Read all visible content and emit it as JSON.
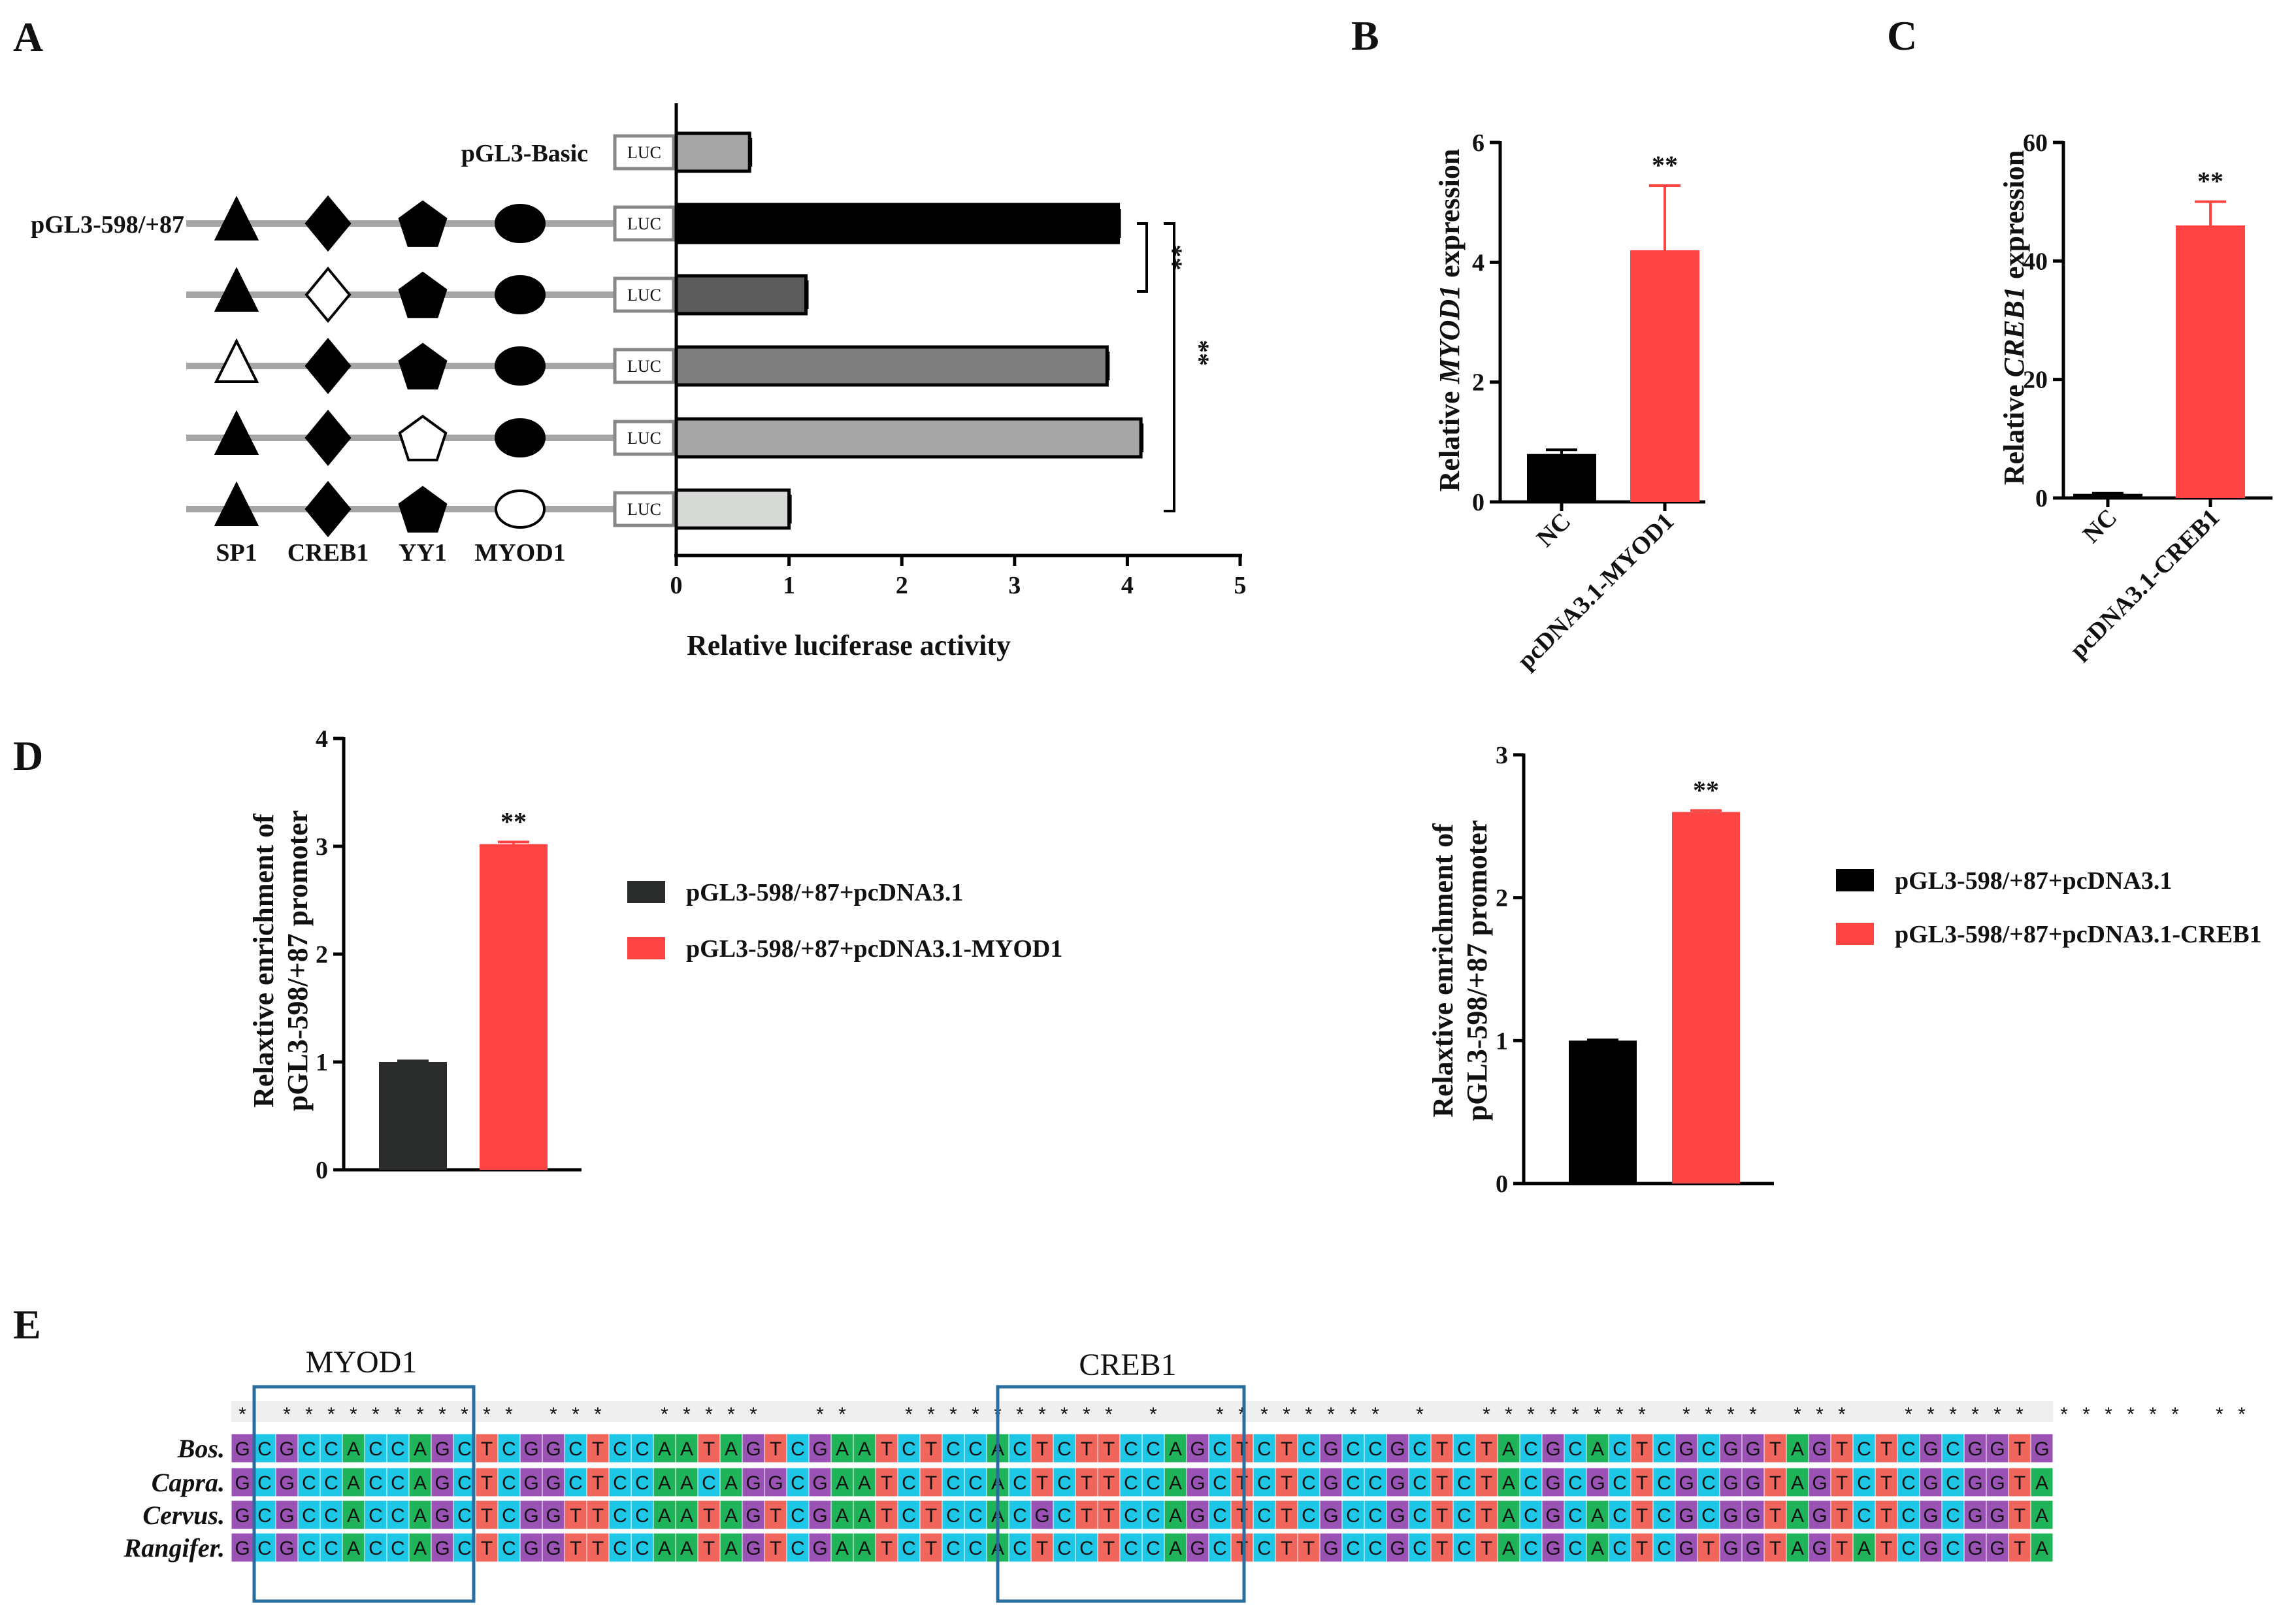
{
  "panels": {
    "A": "A",
    "B": "B",
    "C": "C",
    "D": "D",
    "E": "E"
  },
  "colors": {
    "red": "#ff4444",
    "black": "#000000",
    "dark": "#2a2c2c",
    "grey_light": "#a6a6a6",
    "grey_dark": "#5c5c5c",
    "grey_mid": "#7f7f7f",
    "grey_pale": "#d7d9d7"
  },
  "chart_data": [
    {
      "id": "A",
      "type": "bar",
      "orientation": "horizontal",
      "title": "",
      "xlabel": "Relative luciferase activity",
      "ylabel": "",
      "xlim": [
        0,
        5
      ],
      "xticks": [
        "0",
        "1",
        "2",
        "3",
        "4",
        "5"
      ],
      "constructs": [
        {
          "label": "pGL3-Basic",
          "value": 0.65,
          "error": 0.02,
          "color": "#a6a6a6",
          "sites": null
        },
        {
          "label": "pGL3-598/+87",
          "value": 3.92,
          "error": 0.03,
          "color": "#000000",
          "sites": [
            true,
            true,
            true,
            true
          ]
        },
        {
          "label": "",
          "value": 1.15,
          "error": 0.02,
          "color": "#5c5c5c",
          "sites": [
            true,
            false,
            true,
            true
          ]
        },
        {
          "label": "",
          "value": 3.82,
          "error": 0.02,
          "color": "#7f7f7f",
          "sites": [
            false,
            true,
            true,
            true
          ]
        },
        {
          "label": "",
          "value": 4.12,
          "error": 0.02,
          "color": "#a6a6a6",
          "sites": [
            true,
            true,
            false,
            true
          ]
        },
        {
          "label": "",
          "value": 1.0,
          "error": 0.02,
          "color": "#d7d9d7",
          "sites": [
            true,
            true,
            true,
            false
          ]
        }
      ],
      "site_names": [
        "SP1",
        "CREB1",
        "YY1",
        "MYOD1"
      ],
      "reporter_label": "LUC",
      "significance": [
        "**",
        "**"
      ]
    },
    {
      "id": "B",
      "type": "bar",
      "categories": [
        "NC",
        "pcDNA3.1-MYOD1"
      ],
      "values": [
        0.8,
        4.2
      ],
      "errors": [
        0.07,
        1.08
      ],
      "colors": [
        "#000000",
        "#ff4444"
      ],
      "ylabel_parts": [
        "Relative ",
        "MYOD1",
        " expression"
      ],
      "ylim": [
        0,
        6
      ],
      "yticks": [
        "0",
        "2",
        "4",
        "6"
      ],
      "significance": "**"
    },
    {
      "id": "C",
      "type": "bar",
      "categories": [
        "NC",
        "pcDNA3.1-CREB1"
      ],
      "values": [
        0.7,
        46
      ],
      "errors": [
        0.1,
        4
      ],
      "colors": [
        "#000000",
        "#ff4444"
      ],
      "ylabel_parts": [
        "Relative ",
        "CREB1",
        " expression"
      ],
      "ylim": [
        0,
        60
      ],
      "yticks": [
        "0",
        "20",
        "40",
        "60"
      ],
      "significance": "**"
    },
    {
      "id": "D1",
      "type": "bar",
      "series": [
        {
          "name": "pGL3-598/+87+pcDNA3.1",
          "value": 1.0,
          "error": 0.01,
          "color": "#2a2c2c"
        },
        {
          "name": "pGL3-598/+87+pcDNA3.1-MYOD1",
          "value": 3.02,
          "error": 0.02,
          "color": "#ff4444"
        }
      ],
      "ylabel_lines": [
        "Relaxtive enrichment of",
        "pGL3-598/+87 promoter"
      ],
      "ylim": [
        0,
        4
      ],
      "yticks": [
        "0",
        "1",
        "2",
        "3",
        "4"
      ],
      "significance": "**"
    },
    {
      "id": "D2",
      "type": "bar",
      "series": [
        {
          "name": "pGL3-598/+87+pcDNA3.1",
          "value": 1.0,
          "error": 0.005,
          "color": "#000000"
        },
        {
          "name": "pGL3-598/+87+pcDNA3.1-CREB1",
          "value": 2.6,
          "error": 0.01,
          "color": "#ff4444"
        }
      ],
      "ylabel_lines": [
        "Relaxtive enrichment of",
        "pGL3-598/+87 promoter"
      ],
      "ylim": [
        0,
        3
      ],
      "yticks": [
        "0",
        "1",
        "2",
        "3"
      ],
      "significance": "**"
    },
    {
      "id": "E",
      "type": "table",
      "box_labels": [
        "MYOD1",
        "CREB1"
      ],
      "species": [
        "Bos.",
        "Capra.",
        "Cervus.",
        "Rangifer."
      ],
      "sequences": [
        "GCGCCACCAGCTCGGCTCCAATAGTCGAATCTCCACTCTTCCAGCTCTCGCCGCTCTACGCACTCGCGGTAGTCTCGCGGTG",
        "GCGCCACCAGCTCGGCTCCAACAGGCGAATCTCCACTCTTCCAGCTCTCGCCGCTCTACGCGCTCGCGGTAGTCTCGCGGTA",
        "GCGCCACCAGCTCGGTTCCAATAGTCGAATCTCCACGCTTCCAGCTCTCGCCGCTCTACGCACTCGCGGTAGTCTCGCGGTA",
        "GCGCCACCAGCTCGGTTCCAATAGTCGAATCTCCACTCCTCCAGCTCTTGCCGCTCTACGCACTCGTGGTAGTATCGCGGTA"
      ],
      "conservation": "* *********** ***  *****  **  ********** *  ******** *  ******** **** ***  ****** ****** **",
      "base_colors": {
        "A": "#1fb35a",
        "C": "#1fc7e6",
        "G": "#9a52b4",
        "T": "#f0665c"
      }
    }
  ]
}
